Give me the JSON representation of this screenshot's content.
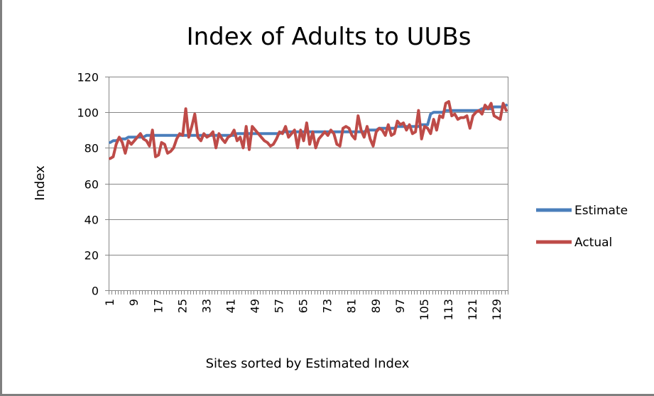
{
  "chart_data": {
    "type": "line",
    "title": "Index of Adults to UUBs",
    "xlabel": "Sites sorted by Estimated Index",
    "ylabel": "Index",
    "ylim": [
      0,
      120
    ],
    "yticks": [
      "0",
      "20",
      "40",
      "60",
      "80",
      "100",
      "120"
    ],
    "ytick_values": [
      0,
      20,
      40,
      60,
      80,
      100,
      120
    ],
    "x_count": 132,
    "xtick_labels": [
      "1",
      "9",
      "17",
      "25",
      "33",
      "41",
      "49",
      "57",
      "65",
      "73",
      "81",
      "89",
      "97",
      "105",
      "113",
      "121",
      "129"
    ],
    "xtick_values": [
      1,
      9,
      17,
      25,
      33,
      41,
      49,
      57,
      65,
      73,
      81,
      89,
      97,
      105,
      113,
      121,
      129
    ],
    "grid": "horizontal",
    "legend_position": "right",
    "series": [
      {
        "name": "Estimate",
        "color": "#4a7ebb",
        "values": [
          83,
          84,
          84,
          85,
          85,
          85,
          86,
          86,
          86,
          86,
          86,
          86,
          87,
          87,
          87,
          87,
          87,
          87,
          87,
          87,
          87,
          87,
          87,
          87,
          87,
          87,
          87,
          87,
          87,
          87,
          87,
          87,
          87,
          87,
          87,
          87,
          87,
          87,
          87,
          87,
          87,
          87,
          88,
          88,
          88,
          88,
          88,
          88,
          88,
          88,
          88,
          88,
          88,
          88,
          88,
          88,
          88,
          89,
          89,
          89,
          89,
          89,
          89,
          89,
          89,
          89,
          89,
          89,
          89,
          89,
          89,
          89,
          89,
          89,
          89,
          89,
          89,
          89,
          89,
          89,
          89,
          89,
          89,
          89,
          89,
          90,
          90,
          90,
          90,
          91,
          91,
          91,
          91,
          91,
          91,
          92,
          92,
          92,
          92,
          92,
          92,
          92,
          92,
          93,
          93,
          93,
          99,
          100,
          100,
          100,
          100,
          101,
          101,
          101,
          101,
          101,
          101,
          101,
          101,
          101,
          101,
          101,
          101,
          102,
          102,
          102,
          102,
          103,
          103,
          103,
          103,
          104,
          105,
          106,
          106
        ]
      },
      {
        "name": "Actual",
        "color": "#be4b48",
        "values": [
          74,
          75,
          82,
          86,
          83,
          77,
          84,
          82,
          84,
          86,
          88,
          85,
          84,
          81,
          90,
          75,
          76,
          83,
          82,
          77,
          78,
          80,
          85,
          88,
          87,
          102,
          86,
          92,
          99,
          86,
          84,
          88,
          86,
          87,
          89,
          80,
          88,
          85,
          83,
          86,
          87,
          90,
          84,
          86,
          80,
          92,
          79,
          92,
          90,
          88,
          86,
          84,
          83,
          81,
          82,
          85,
          89,
          88,
          92,
          86,
          88,
          90,
          80,
          90,
          84,
          94,
          82,
          89,
          80,
          85,
          87,
          89,
          87,
          90,
          88,
          82,
          81,
          91,
          92,
          91,
          87,
          85,
          98,
          90,
          86,
          92,
          85,
          81,
          89,
          91,
          90,
          87,
          93,
          87,
          88,
          95,
          93,
          94,
          90,
          93,
          88,
          89,
          101,
          85,
          92,
          91,
          88,
          96,
          90,
          98,
          97,
          105,
          106,
          98,
          99,
          96,
          97,
          97,
          98,
          91,
          98,
          100,
          101,
          99,
          104,
          102,
          105,
          98,
          97,
          96,
          105,
          101
        ]
      }
    ]
  }
}
